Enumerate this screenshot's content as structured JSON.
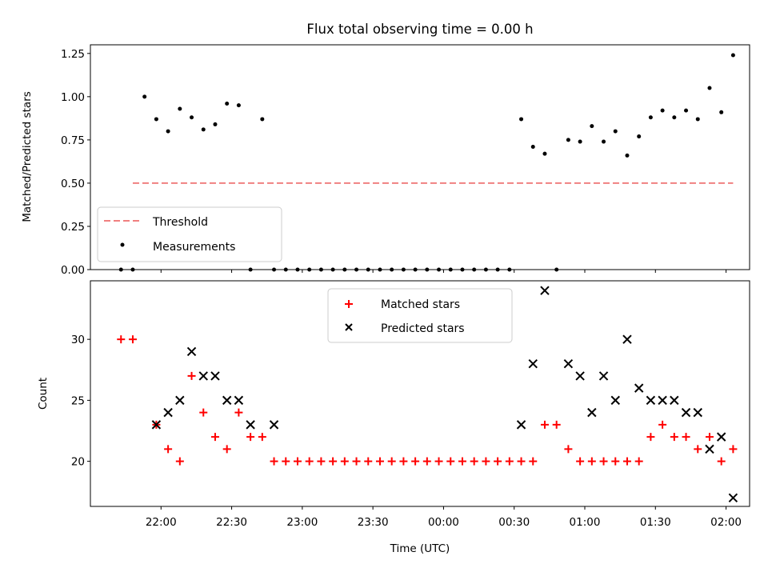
{
  "chart_data": [
    {
      "type": "scatter",
      "title": "Flux total observing time = 0.00 h",
      "xlabel": "",
      "ylabel": "Matched/Predicted stars",
      "ylim": [
        0,
        1.3
      ],
      "yticks": [
        "0.00",
        "0.25",
        "0.50",
        "0.75",
        "1.00",
        "1.25"
      ],
      "ytick_values": [
        0,
        0.25,
        0.5,
        0.75,
        1.0,
        1.25
      ],
      "grid": false,
      "legend_position": "lower-left",
      "threshold": {
        "name": "Threshold",
        "y": 0.5,
        "x_start": "21:48",
        "x_end": "02:03",
        "color": "#f08080"
      },
      "series": [
        {
          "name": "Measurements",
          "color": "#000000",
          "x": [
            "21:43",
            "21:48",
            "21:53",
            "21:58",
            "22:03",
            "22:08",
            "22:13",
            "22:18",
            "22:23",
            "22:28",
            "22:33",
            "22:38",
            "22:43",
            "22:48",
            "22:53",
            "22:58",
            "23:03",
            "23:08",
            "23:13",
            "23:18",
            "23:23",
            "23:28",
            "23:33",
            "23:38",
            "23:43",
            "23:48",
            "23:53",
            "23:58",
            "00:03",
            "00:08",
            "00:13",
            "00:18",
            "00:23",
            "00:28",
            "00:33",
            "00:38",
            "00:43",
            "00:48",
            "00:53",
            "00:58",
            "01:03",
            "01:08",
            "01:13",
            "01:18",
            "01:23",
            "01:28",
            "01:33",
            "01:38",
            "01:43",
            "01:48",
            "01:53",
            "01:58",
            "02:03"
          ],
          "y": [
            0,
            0,
            1.0,
            0.87,
            0.8,
            0.93,
            0.88,
            0.81,
            0.84,
            0.96,
            0.95,
            0,
            0.87,
            0,
            0,
            0,
            0,
            0,
            0,
            0,
            0,
            0,
            0,
            0,
            0,
            0,
            0,
            0,
            0,
            0,
            0,
            0,
            0,
            0,
            0.87,
            0.71,
            0.67,
            0,
            0.75,
            0.74,
            0.83,
            0.74,
            0.8,
            0.66,
            0.77,
            0.88,
            0.92,
            0.88,
            0.92,
            0.87,
            1.05,
            0.91,
            1.24
          ]
        }
      ]
    },
    {
      "type": "scatter",
      "title": "",
      "xlabel": "Time (UTC)",
      "ylabel": "Count",
      "ylim": [
        16.3,
        34.8
      ],
      "yticks": [
        "20",
        "25",
        "30"
      ],
      "ytick_values": [
        20,
        25,
        30
      ],
      "xlim": [
        "21:30",
        "02:10"
      ],
      "xticks": [
        "22:00",
        "22:30",
        "23:00",
        "23:30",
        "00:00",
        "00:30",
        "01:00",
        "01:30",
        "02:00"
      ],
      "grid": false,
      "legend_position": "upper-center",
      "series": [
        {
          "name": "Matched stars",
          "marker": "+",
          "color": "#ff0000",
          "x": [
            "21:43",
            "21:48",
            "21:58",
            "22:03",
            "22:08",
            "22:13",
            "22:18",
            "22:23",
            "22:28",
            "22:33",
            "22:38",
            "22:43",
            "22:48",
            "22:53",
            "22:58",
            "23:03",
            "23:08",
            "23:13",
            "23:18",
            "23:23",
            "23:28",
            "23:33",
            "23:38",
            "23:43",
            "23:48",
            "23:53",
            "23:58",
            "00:03",
            "00:08",
            "00:13",
            "00:18",
            "00:23",
            "00:28",
            "00:33",
            "00:38",
            "00:43",
            "00:48",
            "00:53",
            "00:58",
            "01:03",
            "01:08",
            "01:13",
            "01:18",
            "01:23",
            "01:28",
            "01:33",
            "01:38",
            "01:43",
            "01:48",
            "01:53",
            "01:58",
            "02:03"
          ],
          "y": [
            30,
            30,
            23,
            21,
            20,
            27,
            24,
            22,
            21,
            24,
            22,
            22,
            20,
            20,
            20,
            20,
            20,
            20,
            20,
            20,
            20,
            20,
            20,
            20,
            20,
            20,
            20,
            20,
            20,
            20,
            20,
            20,
            20,
            20,
            20,
            23,
            23,
            21,
            20,
            20,
            20,
            20,
            20,
            20,
            22,
            23,
            22,
            22,
            21,
            22,
            20,
            21
          ]
        },
        {
          "name": "Predicted stars",
          "marker": "x",
          "color": "#000000",
          "x": [
            "21:58",
            "22:03",
            "22:08",
            "22:13",
            "22:18",
            "22:23",
            "22:28",
            "22:33",
            "22:38",
            "22:48",
            "00:33",
            "00:38",
            "00:43",
            "00:53",
            "00:58",
            "01:03",
            "01:08",
            "01:13",
            "01:18",
            "01:23",
            "01:28",
            "01:33",
            "01:38",
            "01:43",
            "01:48",
            "01:53",
            "01:58",
            "02:03"
          ],
          "y": [
            23,
            24,
            25,
            29,
            27,
            27,
            25,
            25,
            23,
            23,
            23,
            28,
            34,
            28,
            27,
            24,
            27,
            25,
            30,
            26,
            25,
            25,
            25,
            24,
            24,
            21,
            22,
            17
          ]
        }
      ]
    }
  ]
}
